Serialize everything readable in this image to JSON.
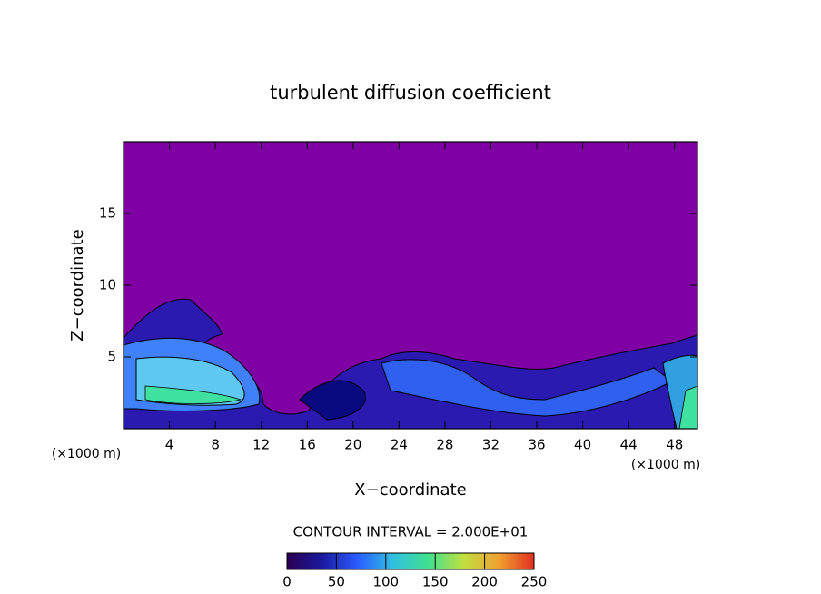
{
  "chart_data": {
    "type": "contour",
    "title": "turbulent diffusion coefficient",
    "xlabel": "X−coordinate",
    "ylabel": "Z−coordinate",
    "x_unit_label": "(×1000 m)",
    "xlim": [
      0,
      50
    ],
    "xticks": [
      4,
      8,
      12,
      16,
      20,
      24,
      28,
      32,
      36,
      40,
      44,
      48
    ],
    "ylim": [
      0,
      20
    ],
    "yticks": [
      5,
      10,
      15
    ],
    "annotation": "CONTOUR INTERVAL = 2.000E+01",
    "colorbar": {
      "range": [
        0,
        250
      ],
      "ticks": [
        0,
        50,
        100,
        150,
        200,
        250
      ],
      "colors": [
        "#2a0050",
        "#1a1aa0",
        "#2a5cff",
        "#30c0e0",
        "#40e090",
        "#c0e040",
        "#f0a030",
        "#e03020"
      ]
    }
  }
}
